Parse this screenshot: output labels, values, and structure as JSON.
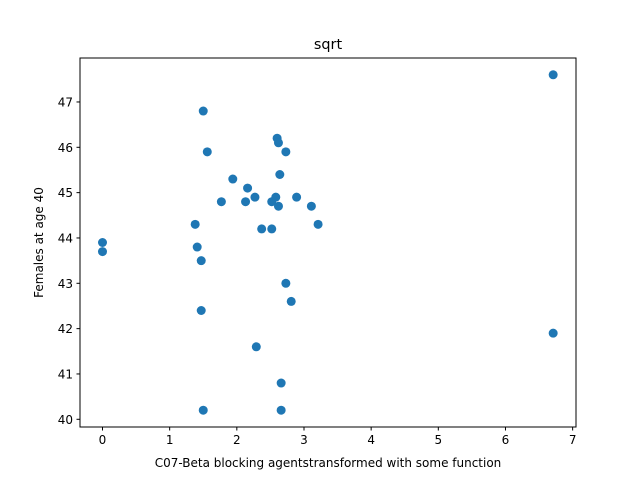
{
  "chart_data": {
    "type": "scatter",
    "title": "sqrt",
    "xlabel": "C07-Beta blocking agentstransformed with some function",
    "ylabel": "Females at age 40",
    "xlim": [
      -0.335,
      7.05
    ],
    "ylim": [
      39.83,
      47.97
    ],
    "xticks": [
      0,
      1,
      2,
      3,
      4,
      5,
      6,
      7
    ],
    "yticks": [
      40,
      41,
      42,
      43,
      44,
      45,
      46,
      47
    ],
    "grid": false,
    "marker_color": "#1f77b4",
    "points": [
      {
        "x": 0.0,
        "y": 43.9
      },
      {
        "x": 0.0,
        "y": 43.7
      },
      {
        "x": 1.38,
        "y": 44.3
      },
      {
        "x": 1.41,
        "y": 43.8
      },
      {
        "x": 1.47,
        "y": 43.5
      },
      {
        "x": 1.47,
        "y": 42.4
      },
      {
        "x": 1.5,
        "y": 46.8
      },
      {
        "x": 1.5,
        "y": 40.2
      },
      {
        "x": 1.56,
        "y": 45.9
      },
      {
        "x": 1.77,
        "y": 44.8
      },
      {
        "x": 1.94,
        "y": 45.3
      },
      {
        "x": 2.13,
        "y": 44.8
      },
      {
        "x": 2.16,
        "y": 45.1
      },
      {
        "x": 2.27,
        "y": 44.9
      },
      {
        "x": 2.29,
        "y": 41.6
      },
      {
        "x": 2.37,
        "y": 44.2
      },
      {
        "x": 2.52,
        "y": 44.8
      },
      {
        "x": 2.52,
        "y": 44.2
      },
      {
        "x": 2.58,
        "y": 44.9
      },
      {
        "x": 2.6,
        "y": 46.2
      },
      {
        "x": 2.62,
        "y": 46.1
      },
      {
        "x": 2.62,
        "y": 44.7
      },
      {
        "x": 2.64,
        "y": 45.4
      },
      {
        "x": 2.66,
        "y": 40.8
      },
      {
        "x": 2.66,
        "y": 40.2
      },
      {
        "x": 2.73,
        "y": 45.9
      },
      {
        "x": 2.73,
        "y": 43.0
      },
      {
        "x": 2.81,
        "y": 42.6
      },
      {
        "x": 2.89,
        "y": 44.9
      },
      {
        "x": 3.11,
        "y": 44.7
      },
      {
        "x": 3.21,
        "y": 44.3
      },
      {
        "x": 6.71,
        "y": 47.6
      },
      {
        "x": 6.71,
        "y": 41.9
      }
    ]
  }
}
